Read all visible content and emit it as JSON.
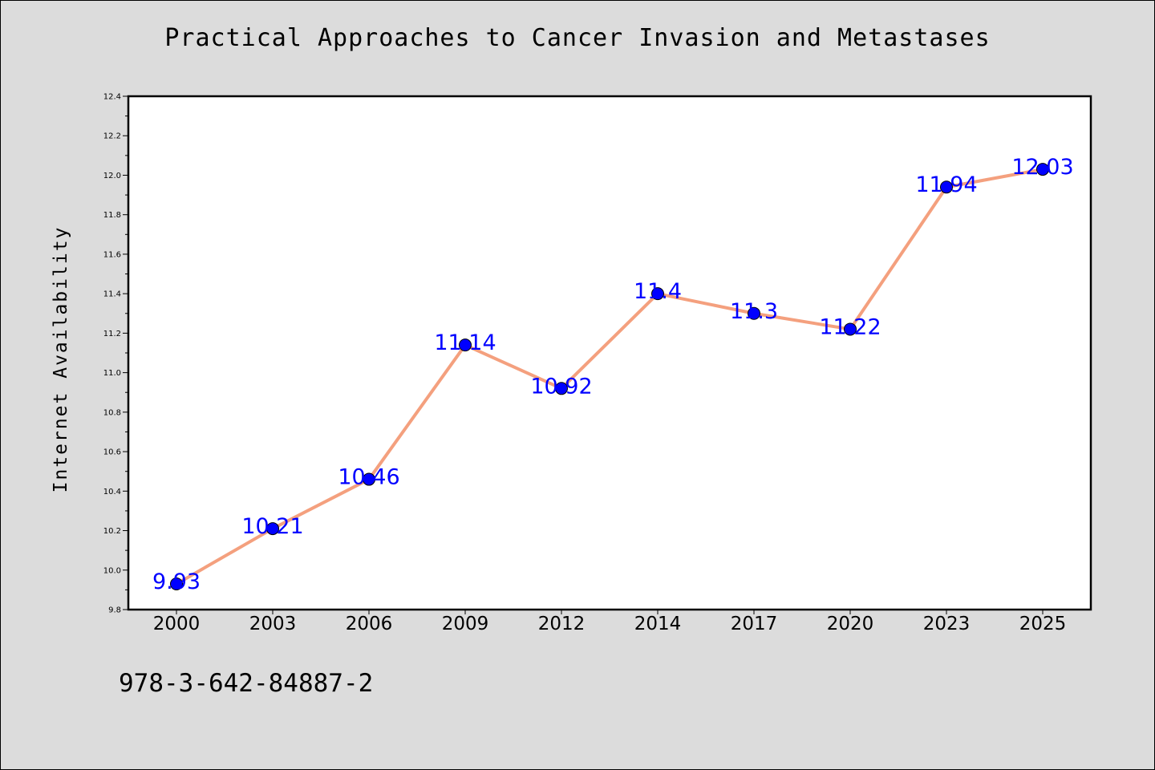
{
  "colors": {
    "background": "#dcdcdc",
    "plot_area": "#ffffff",
    "line": "#f4a07e",
    "marker": "#0000ff",
    "data_label": "#0000ff"
  },
  "footer": {
    "isbn": "978-3-642-84887-2"
  },
  "chart_data": {
    "type": "line",
    "title": "Practical Approaches to Cancer Invasion and Metastases",
    "xlabel": "",
    "ylabel": "Internet Availability",
    "categories": [
      "2000",
      "2003",
      "2006",
      "2009",
      "2012",
      "2014",
      "2017",
      "2020",
      "2023",
      "2025"
    ],
    "values": [
      9.93,
      10.21,
      10.46,
      11.14,
      10.92,
      11.4,
      11.3,
      11.22,
      11.94,
      12.03
    ],
    "data_labels": [
      "9.93",
      "10.21",
      "10.46",
      "11.14",
      "10.92",
      "11.4",
      "11.3",
      "11.22",
      "11.94",
      "12.03"
    ],
    "ylim": [
      9.8,
      12.4
    ],
    "yticks": [
      "9.8",
      "10.0",
      "10.2",
      "10.4",
      "10.6",
      "10.8",
      "11.0",
      "11.2",
      "11.4",
      "11.6",
      "11.8",
      "12.0",
      "12.2",
      "12.4"
    ],
    "grid": false,
    "legend": "none"
  }
}
